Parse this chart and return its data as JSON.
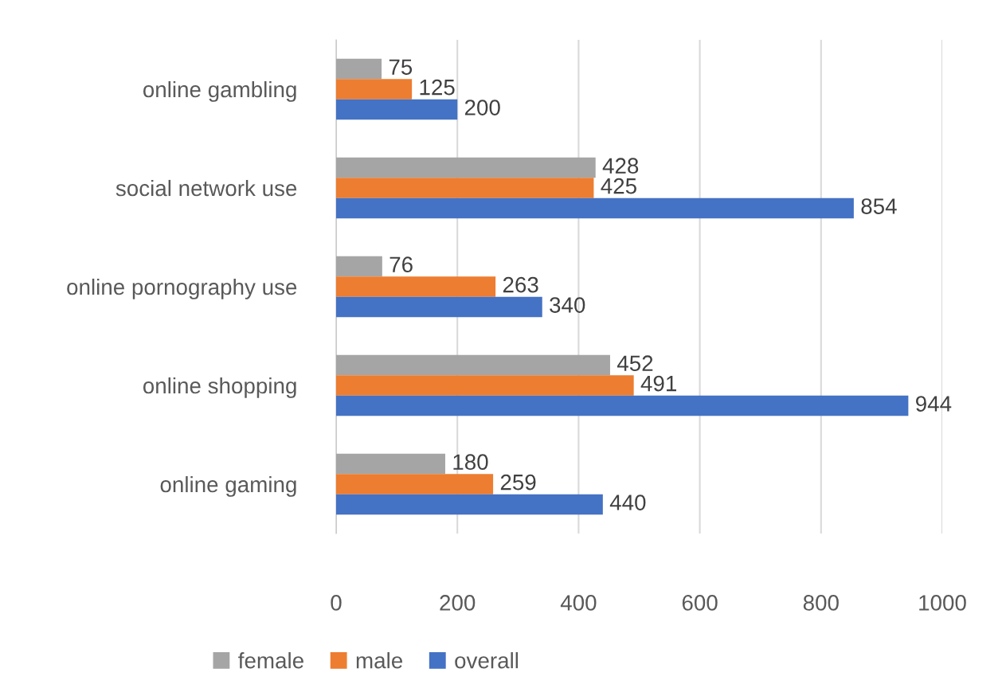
{
  "chart_data": {
    "type": "bar",
    "orientation": "horizontal",
    "categories": [
      "online gambling",
      "social network use",
      "online pornography use",
      "online shopping",
      "online gaming"
    ],
    "series": [
      {
        "name": "female",
        "color": "#a5a5a5",
        "values": [
          75,
          428,
          76,
          452,
          180
        ]
      },
      {
        "name": "male",
        "color": "#ed7d31",
        "values": [
          125,
          425,
          263,
          491,
          259
        ]
      },
      {
        "name": "overall",
        "color": "#4472c4",
        "values": [
          200,
          854,
          340,
          944,
          440
        ]
      }
    ],
    "xlim": [
      0,
      1000
    ],
    "xticks": [
      0,
      200,
      400,
      600,
      800,
      1000
    ],
    "grid": "x",
    "data_labels": true,
    "legend": "bottom"
  }
}
